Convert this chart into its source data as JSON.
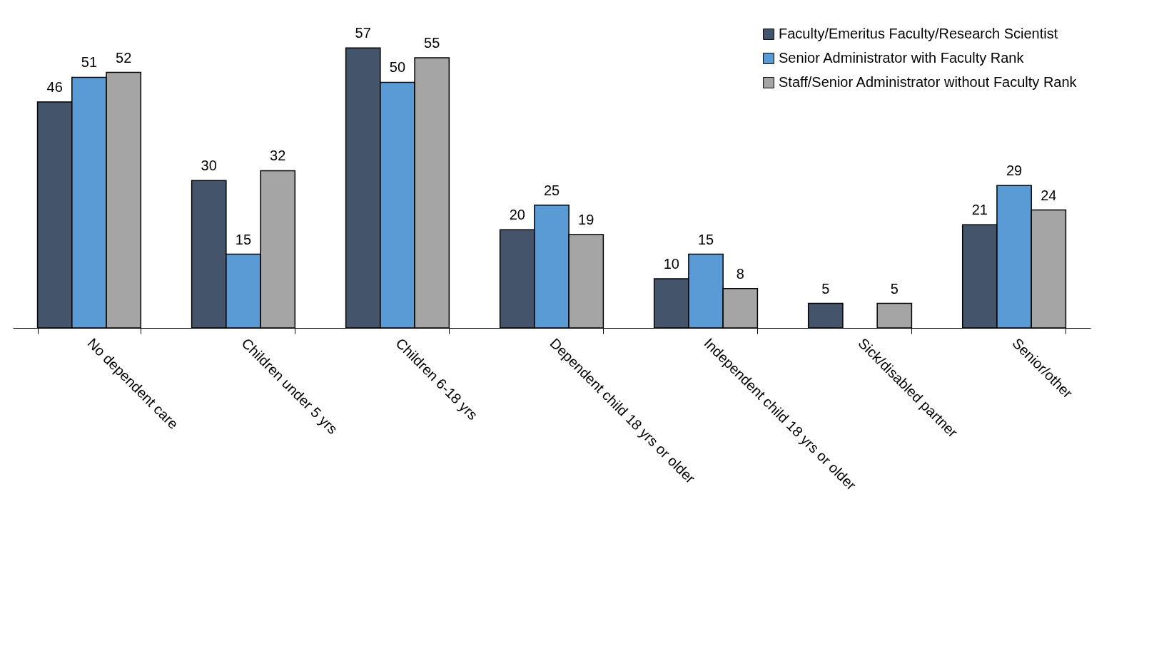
{
  "chart_data": {
    "type": "bar",
    "categories": [
      "No dependent care",
      "Children under 5 yrs",
      "Children 6-18 yrs",
      "Dependent child 18 yrs or older",
      "Independent child 18 yrs or older",
      "Sick/disabled partner",
      "Senior/other"
    ],
    "series": [
      {
        "name": "Faculty/Emeritus Faculty/Research Scientist",
        "color": "#44546a",
        "values": [
          46,
          30,
          57,
          20,
          10,
          5,
          21
        ]
      },
      {
        "name": "Senior Administrator with Faculty Rank",
        "color": "#5b9bd5",
        "values": [
          51,
          15,
          50,
          25,
          15,
          null,
          29
        ]
      },
      {
        "name": "Staff/Senior Administrator without Faculty Rank",
        "color": "#a5a5a5",
        "values": [
          52,
          32,
          55,
          19,
          8,
          5,
          24
        ]
      }
    ],
    "data_labels": true,
    "legend": "top right",
    "grid": false
  }
}
